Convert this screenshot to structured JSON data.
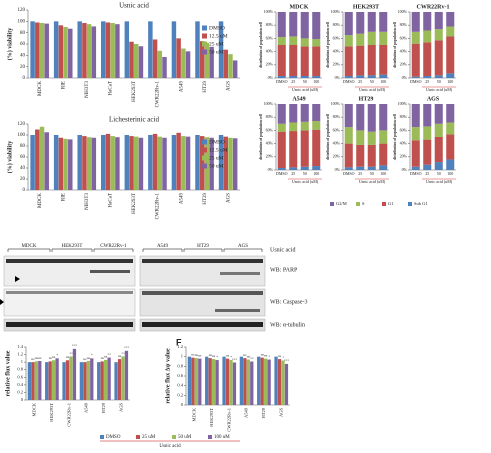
{
  "chart_data": [
    {
      "type": "bar",
      "title": "Usnic acid",
      "y_label": "(%) viability",
      "legend": "right",
      "categories": [
        "MDCK",
        "RIE",
        "NIH3T3",
        "HaCaT",
        "HEK293T",
        "CWR22Rv-1",
        "A549",
        "HT29",
        "AGS"
      ],
      "ylim": [
        0,
        120
      ],
      "yticks": [
        0,
        20,
        40,
        60,
        80,
        100,
        120
      ],
      "series": [
        {
          "name": "DMSO",
          "color": "#4f81bd",
          "values": [
            100,
            100,
            100,
            100,
            100,
            100,
            100,
            100,
            100
          ]
        },
        {
          "name": "12.5 uM",
          "color": "#c0504d",
          "values": [
            98,
            93,
            97,
            98,
            64,
            68,
            70,
            65,
            50
          ]
        },
        {
          "name": "25 uM",
          "color": "#9bbb59",
          "values": [
            97,
            90,
            95,
            97,
            60,
            48,
            52,
            62,
            42
          ]
        },
        {
          "name": "50 uM",
          "color": "#8064a2",
          "values": [
            96,
            87,
            91,
            95,
            56,
            37,
            47,
            55,
            31
          ]
        }
      ]
    },
    {
      "type": "bar",
      "title": "Lichesterinic acid",
      "y_label": "(%) viability",
      "legend": "right",
      "categories": [
        "MDCK",
        "RIE",
        "NIH3T3",
        "HaCaT",
        "HEK293T",
        "CWR22Rv-1",
        "A549",
        "HT29",
        "AGS"
      ],
      "ylim": [
        0,
        120
      ],
      "yticks": [
        0,
        20,
        40,
        60,
        80,
        100,
        120
      ],
      "series": [
        {
          "name": "DMSO",
          "color": "#4f81bd",
          "values": [
            100,
            100,
            100,
            100,
            100,
            100,
            100,
            100,
            100
          ]
        },
        {
          "name": "12.5 uM",
          "color": "#c0504d",
          "values": [
            110,
            95,
            98,
            102,
            98,
            102,
            104,
            98,
            97
          ]
        },
        {
          "name": "25 uM",
          "color": "#9bbb59",
          "values": [
            115,
            93,
            96,
            98,
            97,
            97,
            98,
            96,
            95
          ]
        },
        {
          "name": "50 uM",
          "color": "#8064a2",
          "values": [
            105,
            92,
            95,
            96,
            95,
            95,
            97,
            95,
            94
          ]
        }
      ]
    },
    {
      "type": "stacked_panels",
      "x_label": "Usnic acid (uM)",
      "y_label": "distribution of population cell",
      "categories": [
        "DMSO",
        "25",
        "50",
        "100"
      ],
      "ylim": [
        0,
        100
      ],
      "yticks": [
        {
          "value": 0,
          "label": "0%"
        },
        {
          "value": 20,
          "label": "20%"
        },
        {
          "value": 40,
          "label": "40%"
        },
        {
          "value": 60,
          "label": "60%"
        },
        {
          "value": 80,
          "label": "80%"
        },
        {
          "value": 100,
          "label": "100%"
        }
      ],
      "series": [
        {
          "name": "G2/M",
          "color": "#8064a2"
        },
        {
          "name": "S",
          "color": "#9bbb59"
        },
        {
          "name": "G1",
          "color": "#c0504d"
        },
        {
          "name": "Sub G1",
          "color": "#4f81bd"
        }
      ],
      "panels": [
        {
          "title": "MDCK",
          "values": [
            [
              38,
              37,
              40,
              41
            ],
            [
              12,
              13,
              12,
              11
            ],
            [
              47,
              47,
              45,
              45
            ],
            [
              3,
              3,
              3,
              3
            ]
          ]
        },
        {
          "title": "HEK293T",
          "values": [
            [
              35,
              33,
              30,
              30
            ],
            [
              17,
              18,
              20,
              20
            ],
            [
              45,
              45,
              46,
              45
            ],
            [
              3,
              4,
              4,
              5
            ]
          ]
        },
        {
          "title": "CWR22Rv-1",
          "values": [
            [
              30,
              28,
              26,
              22
            ],
            [
              18,
              18,
              17,
              15
            ],
            [
              50,
              51,
              53,
              56
            ],
            [
              2,
              3,
              4,
              7
            ]
          ]
        },
        {
          "title": "A549",
          "values": [
            [
              30,
              28,
              27,
              26
            ],
            [
              12,
              13,
              13,
              13
            ],
            [
              55,
              55,
              55,
              55
            ],
            [
              3,
              4,
              5,
              6
            ]
          ]
        },
        {
          "title": "HT29",
          "values": [
            [
              35,
              40,
              42,
              40
            ],
            [
              25,
              22,
              20,
              20
            ],
            [
              36,
              33,
              33,
              33
            ],
            [
              4,
              5,
              5,
              7
            ]
          ]
        },
        {
          "title": "AGS",
          "values": [
            [
              35,
              34,
              30,
              28
            ],
            [
              20,
              20,
              20,
              18
            ],
            [
              40,
              38,
              38,
              38
            ],
            [
              5,
              8,
              12,
              16
            ]
          ]
        }
      ]
    },
    {
      "type": "bar",
      "y_label": "relative flux value",
      "legend": "bottom",
      "legend_title": "Usnic acid",
      "categories": [
        "MDCK",
        "HEK293T",
        "CWR22Rv-1",
        "A549",
        "HT29",
        "AGS"
      ],
      "ylim": [
        0,
        1.4
      ],
      "yticks": [
        0,
        0.2,
        0.4,
        0.6,
        0.8,
        1,
        1.2,
        1.4
      ],
      "series": [
        {
          "name": "DMSO",
          "color": "#4f81bd",
          "values": [
            1,
            1,
            1,
            1,
            1,
            1
          ]
        },
        {
          "name": "25 uM",
          "color": "#c0504d",
          "values": [
            1,
            1.02,
            1.05,
            1,
            1.02,
            1.08
          ],
          "annotations": [
            "ns",
            "ns",
            "ns",
            "ns",
            "ns",
            "ns"
          ]
        },
        {
          "name": "50 uM",
          "color": "#9bbb59",
          "values": [
            1.02,
            1.05,
            1.15,
            1.03,
            1.06,
            1.15
          ],
          "annotations": [
            "ns",
            "ns",
            "**",
            "ns",
            "ns",
            "**"
          ]
        },
        {
          "name": "100 uM",
          "color": "#8064a2",
          "values": [
            1.03,
            1.1,
            1.35,
            1.1,
            1.12,
            1.3
          ],
          "annotations": [
            "ns",
            "*",
            "***",
            "*",
            "**",
            "***"
          ]
        }
      ]
    },
    {
      "type": "bar",
      "panel_label": "F",
      "y_label": "relative flux Δψ value",
      "categories": [
        "MDCK",
        "HEK293T",
        "CWR22Rv-1",
        "A549",
        "HT29",
        "AGS"
      ],
      "ylim": [
        0,
        1.2
      ],
      "yticks": [
        0,
        0.2,
        0.4,
        0.6,
        0.8,
        1,
        1.2
      ],
      "series": [
        {
          "color": "#4f81bd",
          "values": [
            1,
            1,
            1,
            1,
            1,
            1
          ]
        },
        {
          "color": "#c0504d",
          "values": [
            0.98,
            0.97,
            0.96,
            0.97,
            0.98,
            0.95
          ],
          "annotations": [
            "ns",
            "ns",
            "ns",
            "ns",
            "ns",
            "ns"
          ]
        },
        {
          "color": "#9bbb59",
          "values": [
            0.97,
            0.95,
            0.93,
            0.94,
            0.96,
            0.92
          ],
          "annotations": [
            "ns",
            "ns",
            "*",
            "ns",
            "ns",
            "*"
          ]
        },
        {
          "color": "#8064a2",
          "values": [
            0.96,
            0.93,
            0.88,
            0.9,
            0.94,
            0.85
          ],
          "annotations": [
            "ns",
            "*",
            "***",
            "**",
            "*",
            "***"
          ]
        }
      ]
    }
  ],
  "western_blot": {
    "cell_lines": [
      "MDCK",
      "HEK293T",
      "CWR22Rv-1",
      "A549",
      "HT29",
      "AGS"
    ],
    "treatment": "Usnic acid",
    "rows": [
      "WB: PARP",
      "WB: Caspase-3",
      "WB: α-tubulin"
    ]
  }
}
